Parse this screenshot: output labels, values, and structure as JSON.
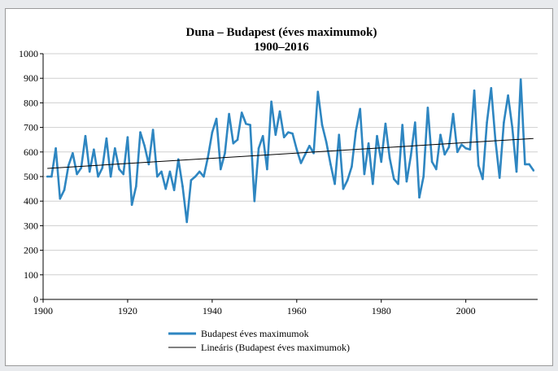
{
  "chart_data": {
    "type": "line",
    "title": "Duna – Budapest (éves maximumok)",
    "subtitle": "1900–2016",
    "xlabel": "",
    "ylabel": "",
    "xlim": [
      1900,
      2017
    ],
    "ylim": [
      0,
      1000
    ],
    "x_ticks": [
      1900,
      1920,
      1940,
      1960,
      1980,
      2000
    ],
    "y_ticks": [
      0,
      100,
      200,
      300,
      400,
      500,
      600,
      700,
      800,
      900,
      1000
    ],
    "grid": "horizontal",
    "legend": "bottom",
    "series": [
      {
        "name": "Budapest éves maximumok",
        "color": "#2e86c1",
        "x": [
          1901,
          1902,
          1903,
          1904,
          1905,
          1906,
          1907,
          1908,
          1909,
          1910,
          1911,
          1912,
          1913,
          1914,
          1915,
          1916,
          1917,
          1918,
          1919,
          1920,
          1921,
          1922,
          1923,
          1924,
          1925,
          1926,
          1927,
          1928,
          1929,
          1930,
          1931,
          1932,
          1933,
          1934,
          1935,
          1936,
          1937,
          1938,
          1939,
          1940,
          1941,
          1942,
          1943,
          1944,
          1945,
          1946,
          1947,
          1948,
          1949,
          1950,
          1951,
          1952,
          1953,
          1954,
          1955,
          1956,
          1957,
          1958,
          1959,
          1960,
          1961,
          1962,
          1963,
          1964,
          1965,
          1966,
          1967,
          1968,
          1969,
          1970,
          1971,
          1972,
          1973,
          1974,
          1975,
          1976,
          1977,
          1978,
          1979,
          1980,
          1981,
          1982,
          1983,
          1984,
          1985,
          1986,
          1987,
          1988,
          1989,
          1990,
          1991,
          1992,
          1993,
          1994,
          1995,
          1996,
          1997,
          1998,
          1999,
          2000,
          2001,
          2002,
          2003,
          2004,
          2005,
          2006,
          2007,
          2008,
          2009,
          2010,
          2011,
          2012,
          2013,
          2014,
          2015,
          2016
        ],
        "values": [
          500,
          500,
          615,
          410,
          445,
          545,
          595,
          510,
          535,
          665,
          520,
          610,
          500,
          535,
          655,
          500,
          615,
          530,
          510,
          660,
          385,
          460,
          680,
          625,
          550,
          690,
          500,
          520,
          450,
          520,
          445,
          570,
          460,
          315,
          485,
          500,
          520,
          500,
          580,
          680,
          735,
          530,
          595,
          755,
          635,
          650,
          760,
          715,
          710,
          400,
          615,
          665,
          530,
          805,
          670,
          765,
          660,
          680,
          675,
          610,
          555,
          590,
          625,
          595,
          845,
          710,
          640,
          550,
          470,
          670,
          450,
          485,
          540,
          685,
          775,
          510,
          635,
          470,
          665,
          560,
          715,
          575,
          490,
          470,
          710,
          480,
          585,
          720,
          415,
          500,
          780,
          560,
          530,
          670,
          590,
          620,
          755,
          600,
          630,
          615,
          610,
          850,
          545,
          490,
          720,
          860,
          650,
          495,
          720,
          830,
          700,
          520,
          895,
          550,
          550,
          525
        ]
      },
      {
        "name": "Lineáris (Budapest éves maximumok)",
        "color": "#000000",
        "type": "linear-trend",
        "x": [
          1901,
          2016
        ],
        "values": [
          533,
          655
        ]
      }
    ]
  }
}
